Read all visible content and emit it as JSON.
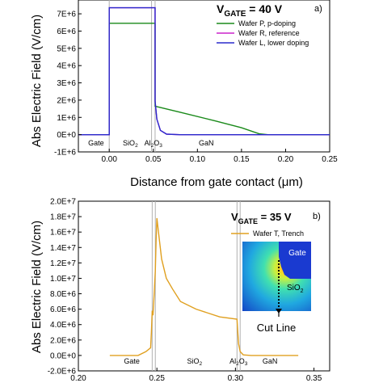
{
  "chart_data": [
    {
      "type": "line",
      "panel_label": "a)",
      "annotation": "V",
      "annotation_sub": "GATE",
      "annotation_rest": " = 40 V",
      "xlabel": "Distance from gate contact (μm)",
      "ylabel": "Abs Electric Field (V/cm)",
      "xlim": [
        -0.035,
        0.25
      ],
      "ylim": [
        -1000000,
        7800000
      ],
      "xticks": [
        "0.00",
        "0.05",
        "0.10",
        "0.15",
        "0.20",
        "0.25"
      ],
      "yticks": [
        "-1E+6",
        "0E+0",
        "1E+6",
        "2E+6",
        "3E+6",
        "4E+6",
        "5E+6",
        "6E+6",
        "7E+6"
      ],
      "boundaries": [
        0.0,
        0.048,
        0.052
      ],
      "regions": [
        {
          "label": "Gate",
          "x": -0.015
        },
        {
          "label": "SiO",
          "sub": "2",
          "x": 0.024
        },
        {
          "label": "Al",
          "sub": "2",
          "rest": "O",
          "sub2": "3",
          "x": 0.05
        },
        {
          "label": "GaN",
          "x": 0.11
        }
      ],
      "series": [
        {
          "name": "Wafer P, p-doping",
          "color": "#1a8a1a",
          "x": [
            -0.035,
            0.0,
            0.0,
            0.048,
            0.052,
            0.052,
            0.08,
            0.12,
            0.15,
            0.17,
            0.18,
            0.25
          ],
          "y": [
            0,
            0,
            6450000,
            6450000,
            6450000,
            1650000,
            1300000,
            800000,
            400000,
            50000,
            0,
            0
          ]
        },
        {
          "name": "Wafer R, reference",
          "color": "#cc22cc",
          "x": [
            -0.035,
            0.0,
            0.0,
            0.048,
            0.052,
            0.052,
            0.054,
            0.058,
            0.065,
            0.08,
            0.25
          ],
          "y": [
            0,
            0,
            7350000,
            7350000,
            7350000,
            1950000,
            900000,
            250000,
            30000,
            0,
            0
          ]
        },
        {
          "name": "Wafer L, lower doping",
          "color": "#2a2acc",
          "x": [
            -0.035,
            0.0,
            0.0,
            0.048,
            0.052,
            0.052,
            0.054,
            0.058,
            0.065,
            0.08,
            0.25
          ],
          "y": [
            0,
            0,
            7350000,
            7350000,
            7350000,
            1950000,
            900000,
            250000,
            30000,
            0,
            0
          ]
        }
      ]
    },
    {
      "type": "line",
      "panel_label": "b)",
      "annotation": "V",
      "annotation_sub": "GATE",
      "annotation_rest": " = 35 V",
      "xlabel": "",
      "ylabel": "Abs Electric Field (V/cm)",
      "xlim": [
        0.2,
        0.36
      ],
      "ylim": [
        -2000000,
        20000000
      ],
      "xticks": [
        "0.20",
        "0.25",
        "0.30",
        "0.35"
      ],
      "xtick_values": [
        0.2,
        0.25,
        0.3,
        0.35
      ],
      "yticks": [
        "-2.0E+6",
        "0.0E+0",
        "2.0E+6",
        "4.0E+6",
        "6.0E+6",
        "8.0E+6",
        "1.0E+7",
        "1.2E+7",
        "1.4E+7",
        "1.6E+7",
        "1.8E+7",
        "2.0E+7"
      ],
      "boundaries": [
        0.247,
        0.249,
        0.301,
        0.303
      ],
      "regions": [
        {
          "label": "Gate",
          "x": 0.234
        },
        {
          "label": "SiO",
          "sub": "2",
          "x": 0.274
        },
        {
          "label": "Al",
          "sub": "2",
          "rest": "O",
          "sub2": "3",
          "x": 0.302
        },
        {
          "label": "GaN",
          "x": 0.322
        }
      ],
      "inset_labels": {
        "gate": "Gate",
        "oxide": "SiO",
        "oxide_sub": "2",
        "cut": "Cut Line"
      },
      "series": [
        {
          "name": "Wafer T, Trench",
          "color": "#e0a020",
          "x": [
            0.22,
            0.238,
            0.243,
            0.246,
            0.2465,
            0.247,
            0.2475,
            0.248,
            0.249,
            0.2495,
            0.25,
            0.251,
            0.253,
            0.256,
            0.26,
            0.265,
            0.275,
            0.29,
            0.301,
            0.3015,
            0.302,
            0.303,
            0.305,
            0.31,
            0.34
          ],
          "y": [
            0,
            0,
            500000,
            1000000,
            3000000,
            5800000,
            5200000,
            7000000,
            11000000,
            15000000,
            17800000,
            16000000,
            12500000,
            10000000,
            8600000,
            7000000,
            6000000,
            5000000,
            4700000,
            3000000,
            1500000,
            500000,
            80000,
            0,
            0
          ]
        }
      ]
    }
  ]
}
